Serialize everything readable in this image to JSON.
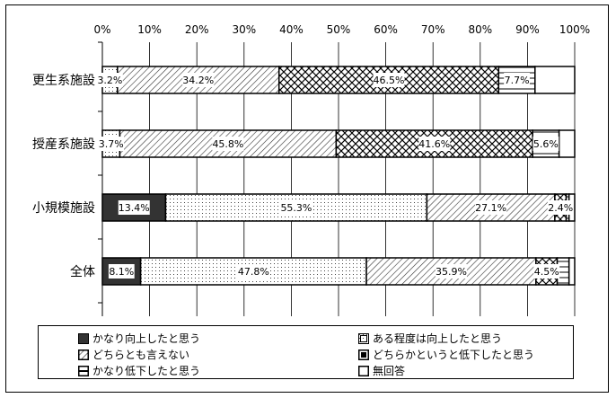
{
  "chart_data": {
    "type": "bar",
    "orientation": "horizontal",
    "stacked": true,
    "xlim": [
      0,
      100
    ],
    "ticks": [
      "0%",
      "10%",
      "20%",
      "30%",
      "40%",
      "50%",
      "60%",
      "70%",
      "80%",
      "90%",
      "100%"
    ],
    "grid": true,
    "legend_position": "bottom",
    "categories": [
      "更生系施設",
      "授産系施設",
      "小規模施設",
      "全体"
    ],
    "series": [
      {
        "name": "かなり向上したと思う",
        "values": [
          0,
          0,
          13.4,
          8.1
        ],
        "labels": [
          "",
          "",
          "13.4%",
          "8.1%"
        ],
        "pattern": "solid"
      },
      {
        "name": "ある程度は向上したと思う",
        "values": [
          3.2,
          3.7,
          55.3,
          47.8
        ],
        "labels": [
          "3.2%",
          "3.7%",
          "55.3%",
          "47.8%"
        ],
        "pattern": "dots"
      },
      {
        "name": "どちらとも言えない",
        "values": [
          34.2,
          45.8,
          27.1,
          35.9
        ],
        "labels": [
          "34.2%",
          "45.8%",
          "27.1%",
          "35.9%"
        ],
        "pattern": "diagonal"
      },
      {
        "name": "どちらかというと低下したと思う",
        "values": [
          46.5,
          41.6,
          2.4,
          4.5
        ],
        "labels": [
          "46.5%",
          "41.6%",
          "2.4%",
          "4.5%"
        ],
        "pattern": "diamond"
      },
      {
        "name": "かなり低下したと思う",
        "values": [
          7.7,
          5.6,
          0.6,
          2.5
        ],
        "labels": [
          "7.7%",
          "5.6%",
          "",
          ""
        ],
        "pattern": "bricks"
      },
      {
        "name": "無回答",
        "values": [
          8.4,
          3.3,
          1.2,
          1.2
        ],
        "labels": [
          "",
          "",
          "",
          ""
        ],
        "pattern": "blank"
      }
    ]
  },
  "legend": {
    "items": [
      {
        "label": "かなり向上したと思う",
        "pattern": "solid"
      },
      {
        "label": "ある程度は向上したと思う",
        "pattern": "dots"
      },
      {
        "label": "どちらとも言えない",
        "pattern": "diagonal"
      },
      {
        "label": "どちらかというと低下したと思う",
        "pattern": "diamond"
      },
      {
        "label": "かなり低下したと思う",
        "pattern": "bricks"
      },
      {
        "label": "無回答",
        "pattern": "blank"
      }
    ]
  }
}
